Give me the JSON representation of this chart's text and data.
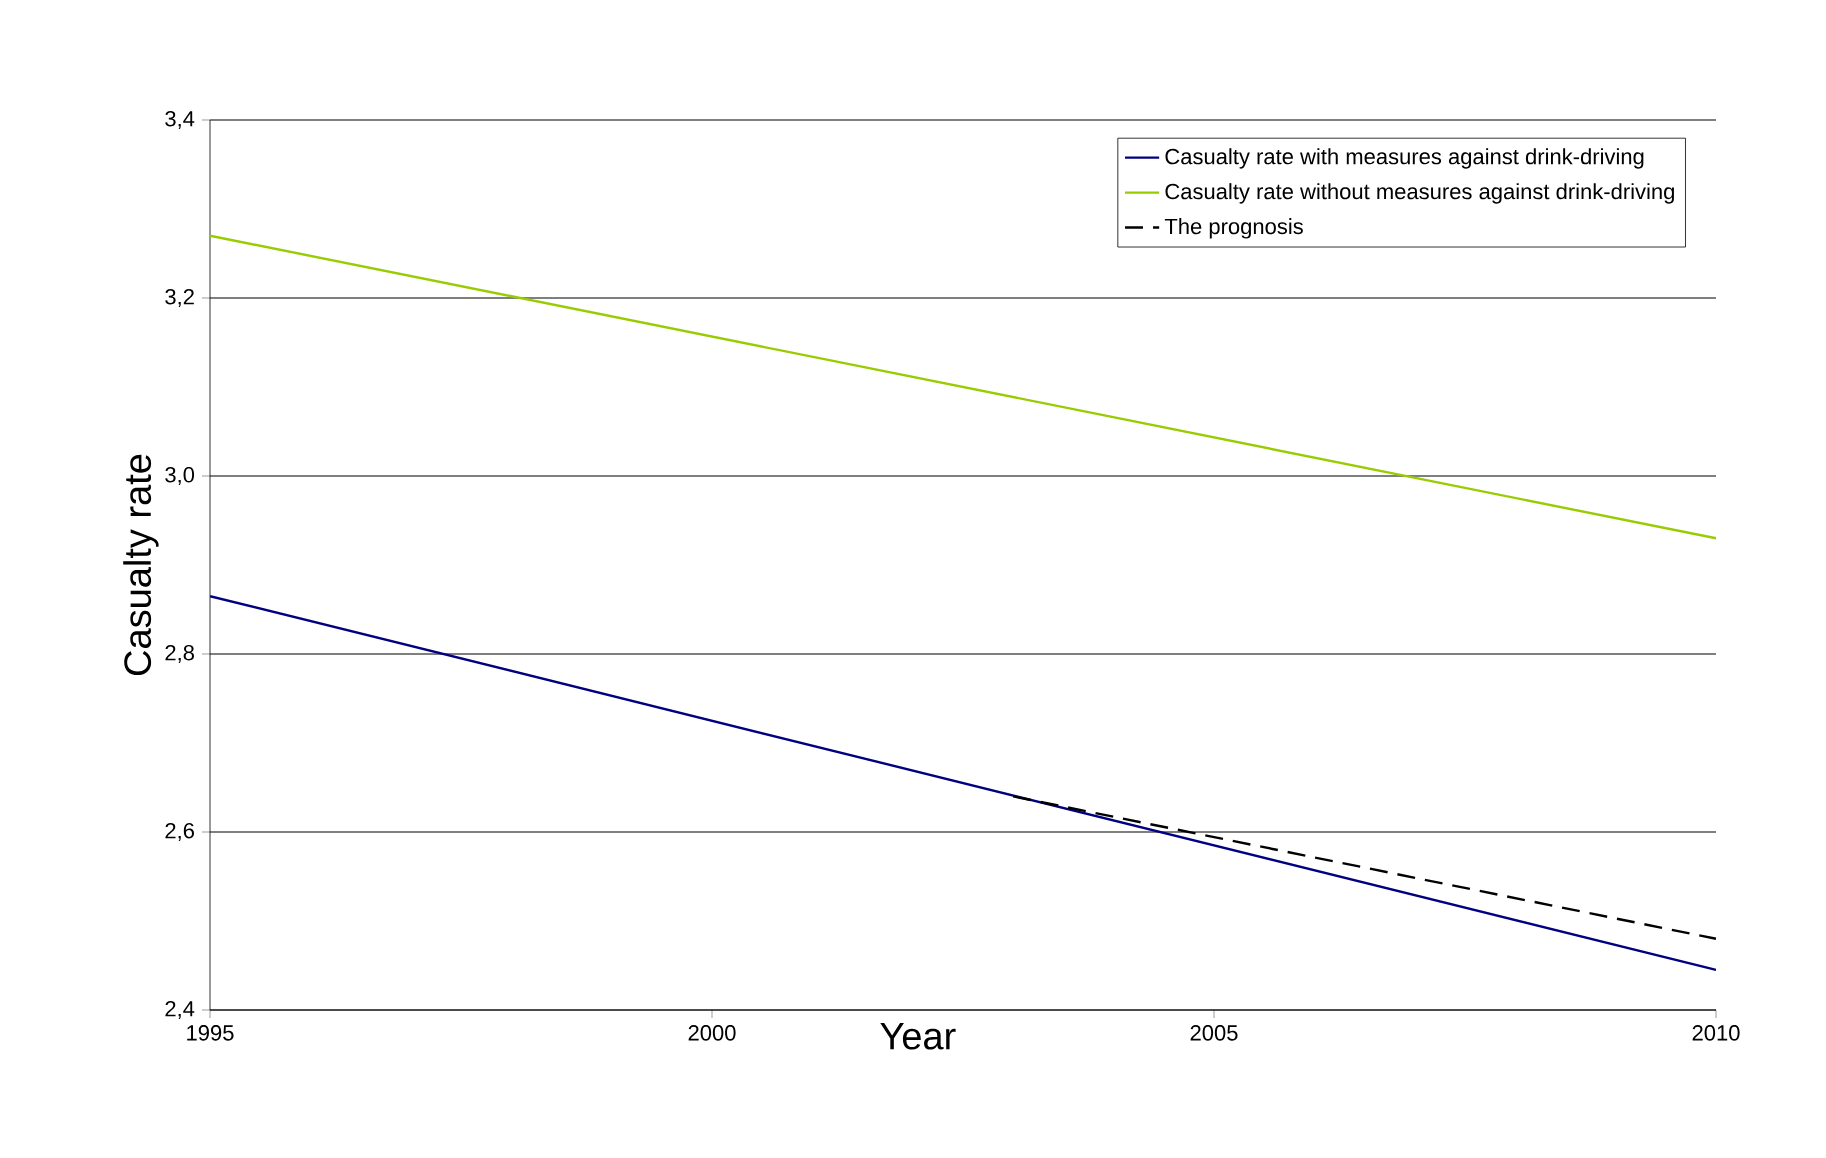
{
  "chart_data": {
    "type": "line",
    "xlabel": "Year",
    "ylabel": "Casualty rate",
    "xlim": [
      1995,
      2010
    ],
    "xticks": [
      1995,
      2000,
      2005,
      2010
    ],
    "ylim": [
      2.4,
      3.4
    ],
    "yticks": [
      {
        "value": 2.4,
        "label": "2,4"
      },
      {
        "value": 2.6,
        "label": "2,6"
      },
      {
        "value": 2.8,
        "label": "2,8"
      },
      {
        "value": 3.0,
        "label": "3,0"
      },
      {
        "value": 3.2,
        "label": "3,2"
      },
      {
        "value": 3.4,
        "label": "3,4"
      }
    ],
    "grid": "y",
    "legend": "top right",
    "marker": "none",
    "series": [
      {
        "name": "Casualty rate with measures against drink-driving",
        "color": "#000080",
        "x": [
          1995,
          2010
        ],
        "values": [
          2.865,
          2.445
        ],
        "line_style": "solid"
      },
      {
        "name": "Casualty rate without measures against drink-driving",
        "color": "#99cc00",
        "x": [
          1995,
          2010
        ],
        "values": [
          3.27,
          2.93
        ],
        "line_style": "solid"
      },
      {
        "name": "The prognosis",
        "color": "#000000",
        "x": [
          2003,
          2010
        ],
        "values": [
          2.64,
          2.48
        ],
        "line_style": "dashed"
      }
    ]
  }
}
